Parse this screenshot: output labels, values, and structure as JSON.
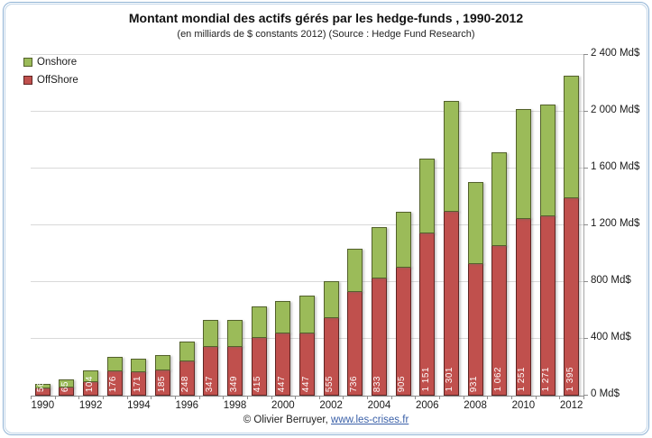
{
  "frame": {
    "title": "Montant mondial des actifs gérés par les hedge-funds , 1990-2012",
    "subtitle": "(en milliards de $ constants 2012) (Source : Hedge Fund Research)",
    "footer_prefix": "© Olivier Berruyer, ",
    "footer_link": "www.les-crises.fr"
  },
  "legend": {
    "items": [
      {
        "label": "Onshore",
        "color": "#9BBB59"
      },
      {
        "label": "OffShore",
        "color": "#C0504D"
      }
    ]
  },
  "chart_data": {
    "type": "bar",
    "stacked": true,
    "title": "Montant mondial des actifs gérés par les hedge-funds , 1990-2012",
    "subtitle": "(en milliards de $ constants 2012) (Source : Hedge Fund Research)",
    "unit": "Md$",
    "categories": [
      1990,
      1991,
      1992,
      1993,
      1994,
      1995,
      1996,
      1997,
      1998,
      1999,
      2000,
      2001,
      2002,
      2003,
      2004,
      2005,
      2006,
      2007,
      2008,
      2009,
      2010,
      2011,
      2012
    ],
    "series": [
      {
        "name": "OffShore",
        "color": "#C0504D",
        "values": [
          56,
          65,
          104,
          176,
          171,
          185,
          248,
          347,
          349,
          415,
          447,
          447,
          555,
          736,
          833,
          905,
          1151,
          1301,
          931,
          1062,
          1251,
          1271,
          1395
        ],
        "labels_shown_on_bars": true
      },
      {
        "name": "Onshore",
        "color": "#9BBB59",
        "values": [
          24,
          50,
          72,
          100,
          92,
          103,
          134,
          185,
          184,
          215,
          218,
          255,
          250,
          300,
          354,
          393,
          520,
          775,
          575,
          655,
          770,
          783,
          860
        ],
        "values_estimated_from_pixels": true,
        "labels_shown_on_bars": false
      }
    ],
    "ylim": [
      0,
      2400
    ],
    "yticks": [
      0,
      400,
      800,
      1200,
      1600,
      2000,
      2400
    ],
    "ytick_label_suffix": " Md$",
    "xtick_labels": [
      "1990",
      "1992",
      "1994",
      "1996",
      "1998",
      "2000",
      "2002",
      "2004",
      "2006",
      "2008",
      "2010",
      "2012"
    ],
    "grid": "horizontal",
    "legend_position": "top-left",
    "y_axis_side": "right"
  },
  "colors": {
    "onshore": "#9BBB59",
    "offshore": "#C0504D",
    "gridline": "#D9D9D9",
    "frame_border": "#8FB2D4",
    "link": "#3A60A8"
  }
}
